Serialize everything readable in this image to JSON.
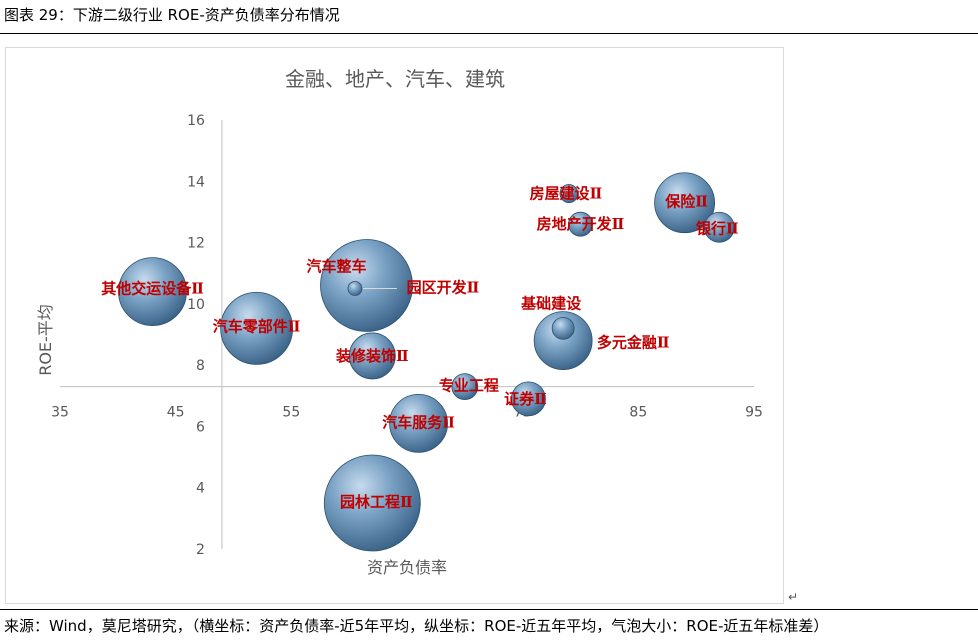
{
  "figure_title": "图表 29：下游二级行业 ROE-资产负债率分布情况",
  "return_mark": "↵",
  "source_note": "来源：Wind，莫尼塔研究，（横坐标：资产负债率-近5年平均，纵坐标：ROE-近五年平均，气泡大小：ROE-近五年标准差）",
  "colors": {
    "bubble_base": "#4f7fa8",
    "bubble_highlight": "#c7dbee",
    "bubble_edge": "#2b4f6e",
    "label": "#c00000",
    "axis": "#bfbfbf"
  },
  "chart_data": {
    "type": "bubble",
    "title": "金融、地产、汽车、建筑",
    "xlabel": "资产负债率",
    "ylabel": "ROE-平均",
    "xlim": [
      35,
      95
    ],
    "ylim": [
      2,
      16
    ],
    "xticks": [
      35,
      45,
      55,
      65,
      75,
      85,
      95
    ],
    "yticks": [
      2,
      4,
      6,
      8,
      10,
      12,
      14,
      16
    ],
    "axes_cross": {
      "x": 49,
      "y": 7.3
    },
    "grid": false,
    "series": [
      {
        "label": "其他交运设备Ⅱ",
        "x": 43,
        "y": 10.4,
        "size": 3.4
      },
      {
        "label": "汽车零部件Ⅱ",
        "x": 52,
        "y": 9.2,
        "size": 3.6
      },
      {
        "label": "汽车整车",
        "x": 61.5,
        "y": 10.6,
        "size": 4.6
      },
      {
        "label": "园区开发Ⅱ",
        "x": 60.5,
        "y": 10.5,
        "size": 0.7
      },
      {
        "label": "装修装饰Ⅱ",
        "x": 62,
        "y": 8.3,
        "size": 2.3
      },
      {
        "label": "汽车服务Ⅱ",
        "x": 66,
        "y": 6.1,
        "size": 2.9
      },
      {
        "label": "园林工程Ⅱ",
        "x": 62,
        "y": 3.5,
        "size": 4.8
      },
      {
        "label": "专业工程",
        "x": 70,
        "y": 7.3,
        "size": 1.3
      },
      {
        "label": "证券Ⅱ",
        "x": 75.5,
        "y": 6.9,
        "size": 1.7
      },
      {
        "label": "基础建设",
        "x": 78.5,
        "y": 9.2,
        "size": 1.1
      },
      {
        "label": "多元金融Ⅱ",
        "x": 78.5,
        "y": 8.8,
        "size": 2.9
      },
      {
        "label": "房屋建设Ⅱ",
        "x": 79,
        "y": 13.6,
        "size": 0.9
      },
      {
        "label": "房地产开发Ⅱ",
        "x": 80,
        "y": 12.6,
        "size": 1.2
      },
      {
        "label": "保险Ⅱ",
        "x": 89,
        "y": 13.3,
        "size": 3.0
      },
      {
        "label": "银行Ⅱ",
        "x": 92,
        "y": 12.5,
        "size": 1.5
      }
    ]
  }
}
